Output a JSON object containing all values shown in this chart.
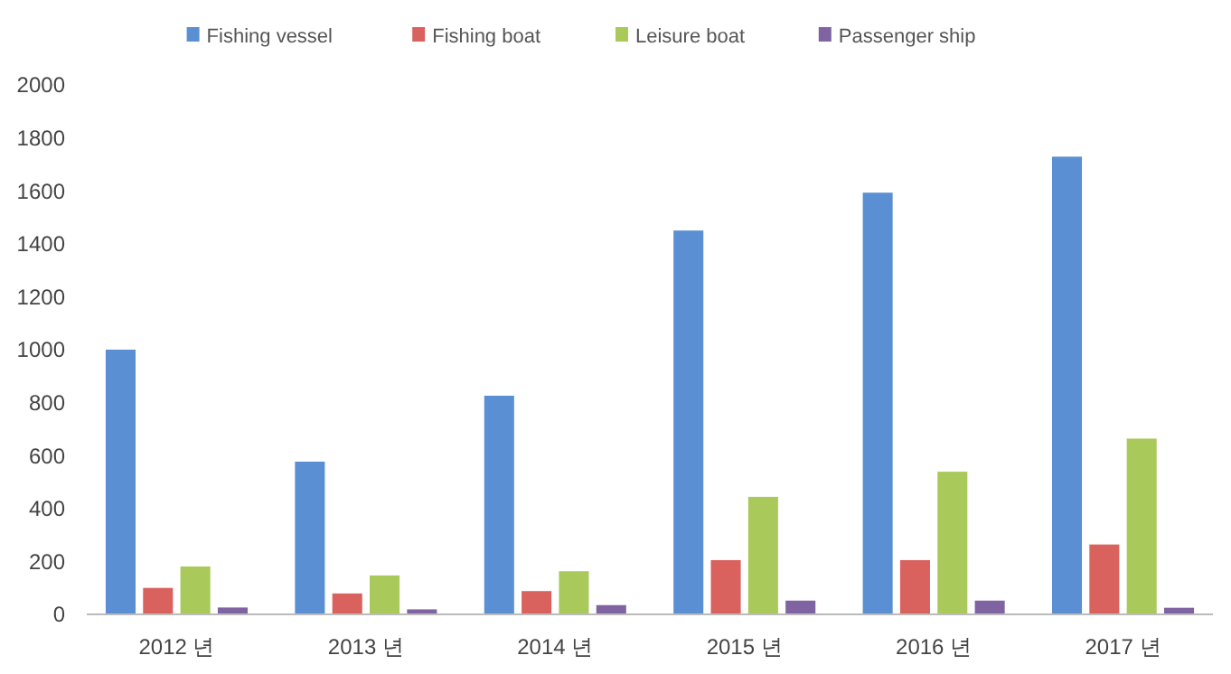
{
  "chart_data": {
    "type": "bar",
    "categories": [
      "2012 년",
      "2013 년",
      "2014 년",
      "2015 년",
      "2016 년",
      "2017 년"
    ],
    "series": [
      {
        "name": "Fishing vessel",
        "color": "#5b8fd4",
        "values": [
          1000,
          577,
          826,
          1450,
          1593,
          1729
        ]
      },
      {
        "name": "Fishing boat",
        "color": "#d9625f",
        "values": [
          100,
          79,
          88,
          205,
          205,
          264
        ]
      },
      {
        "name": "Leisure boat",
        "color": "#a9c95a",
        "values": [
          181,
          147,
          163,
          444,
          539,
          664
        ]
      },
      {
        "name": "Passenger ship",
        "color": "#8064a2",
        "values": [
          26,
          19,
          35,
          52,
          52,
          25
        ]
      }
    ],
    "ylim": [
      0,
      2000
    ],
    "yticks": [
      0,
      200,
      400,
      600,
      800,
      1000,
      1200,
      1400,
      1600,
      1800,
      2000
    ],
    "grid": false,
    "legend": "top"
  }
}
